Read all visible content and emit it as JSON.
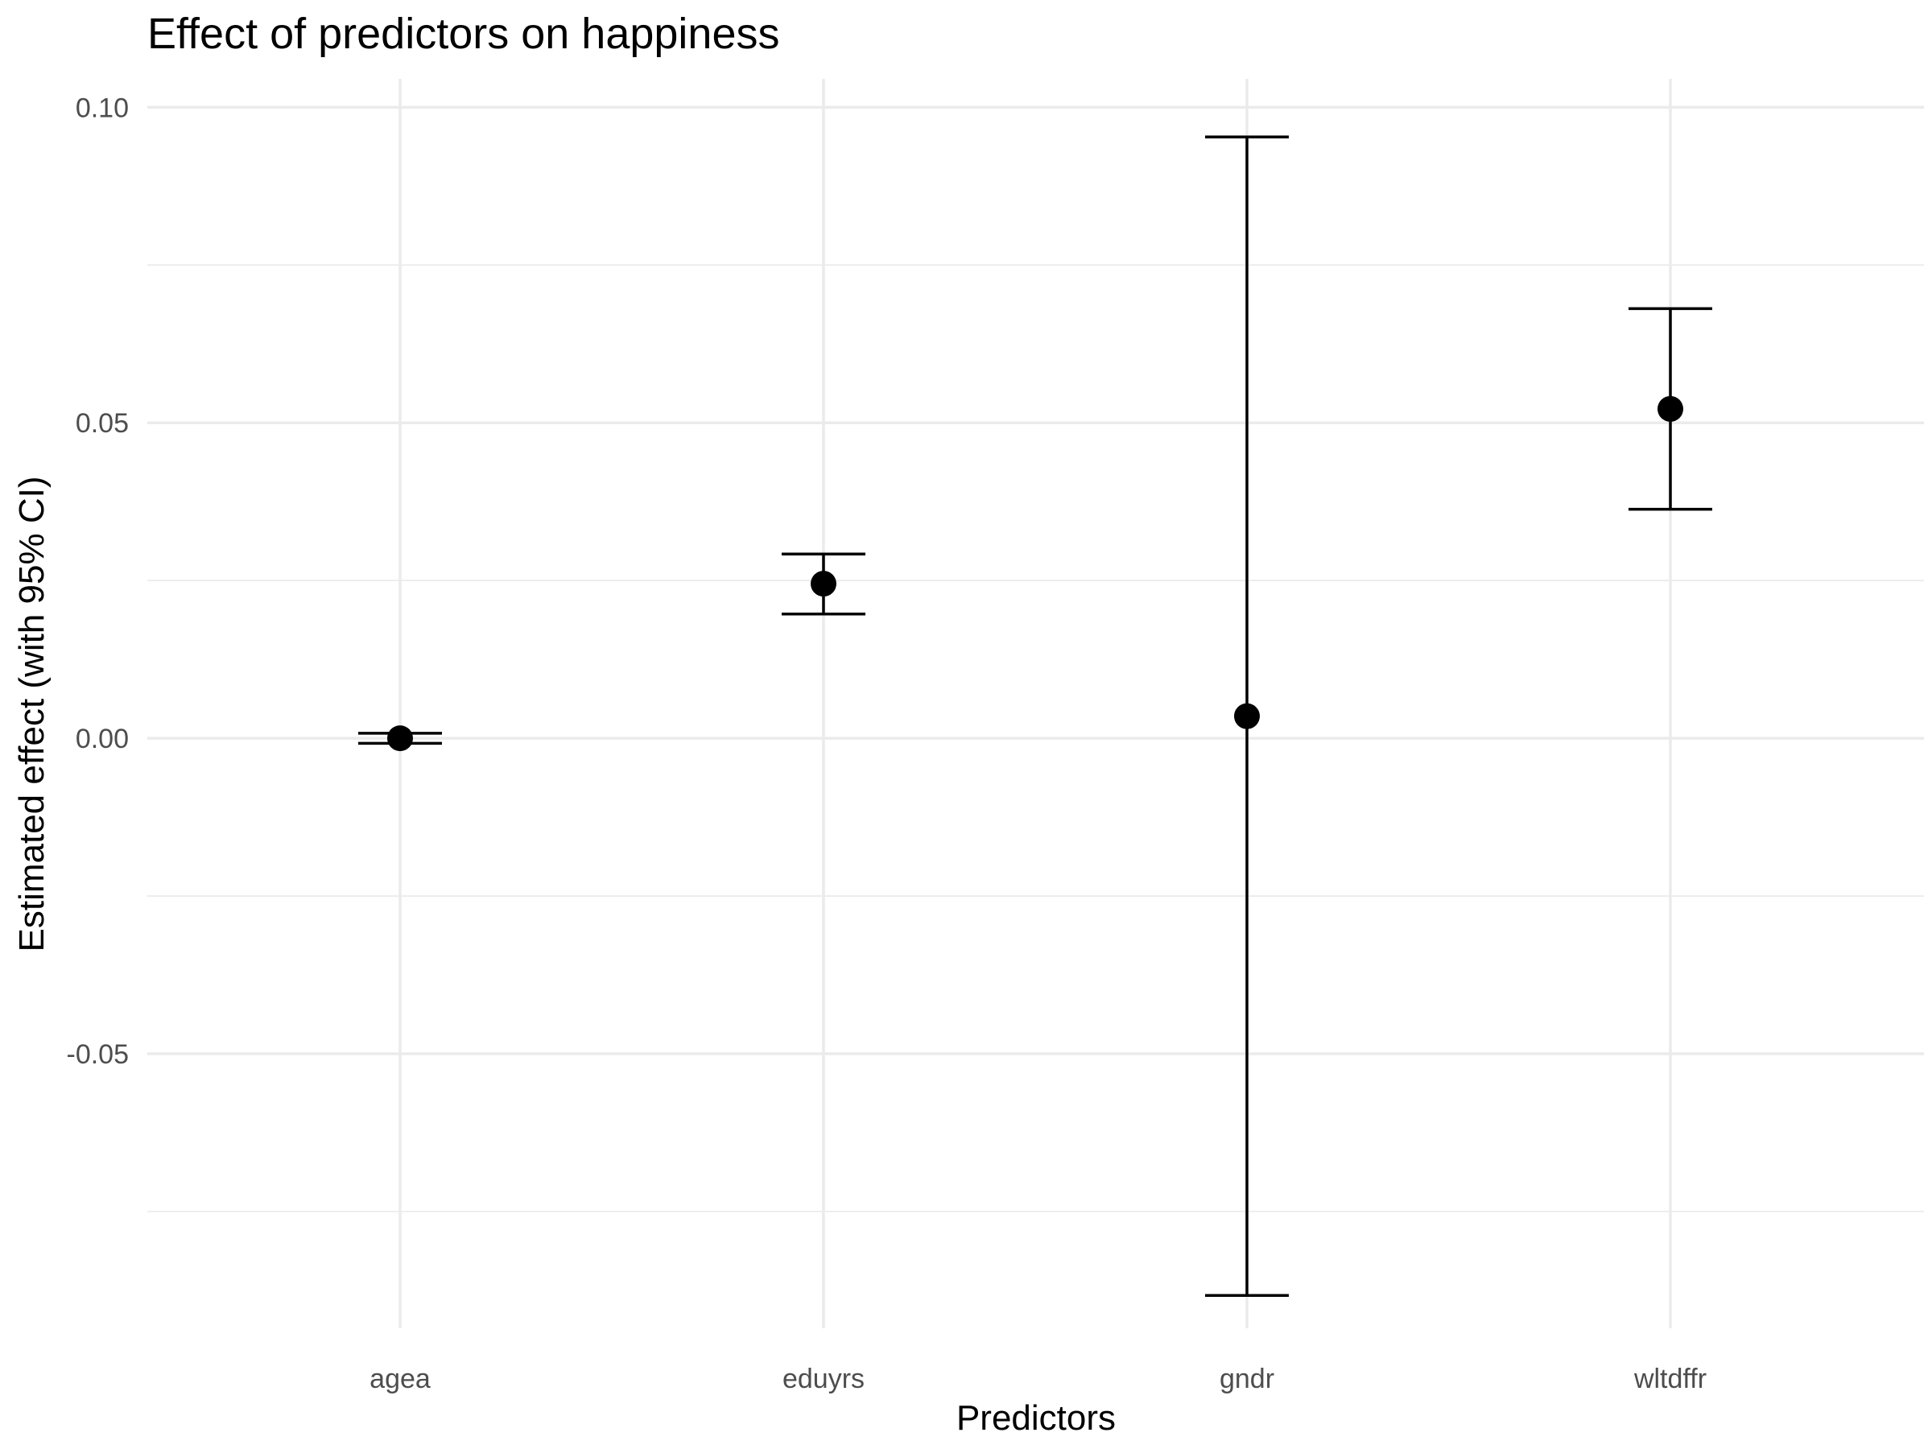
{
  "chart_data": {
    "type": "scatter",
    "title": "Effect of predictors on happiness",
    "xlabel": "Predictors",
    "ylabel": "Estimated effect (with 95% CI)",
    "categories": [
      "agea",
      "eduyrs",
      "gndr",
      "wltdffr"
    ],
    "series": [
      {
        "estimate": [
          0.0,
          0.0245,
          0.0035,
          0.0522
        ],
        "ci_lower": [
          -0.0008,
          0.0197,
          -0.0883,
          0.0363
        ],
        "ci_upper": [
          0.0008,
          0.0292,
          0.0953,
          0.0681
        ]
      }
    ],
    "ylim": [
      -0.0935,
      0.1045
    ],
    "yticks": [
      -0.05,
      0.0,
      0.05,
      0.1
    ],
    "ytick_labels": [
      "-0.05",
      "0.00",
      "0.05",
      "0.10"
    ],
    "yminor": [
      -0.075,
      -0.025,
      0.025,
      0.075
    ],
    "grid": true,
    "legend": "none",
    "colors": {
      "mark": "#000000",
      "grid": "#ebebeb",
      "tick_text": "#4d4d4d",
      "background": "#ffffff"
    }
  }
}
